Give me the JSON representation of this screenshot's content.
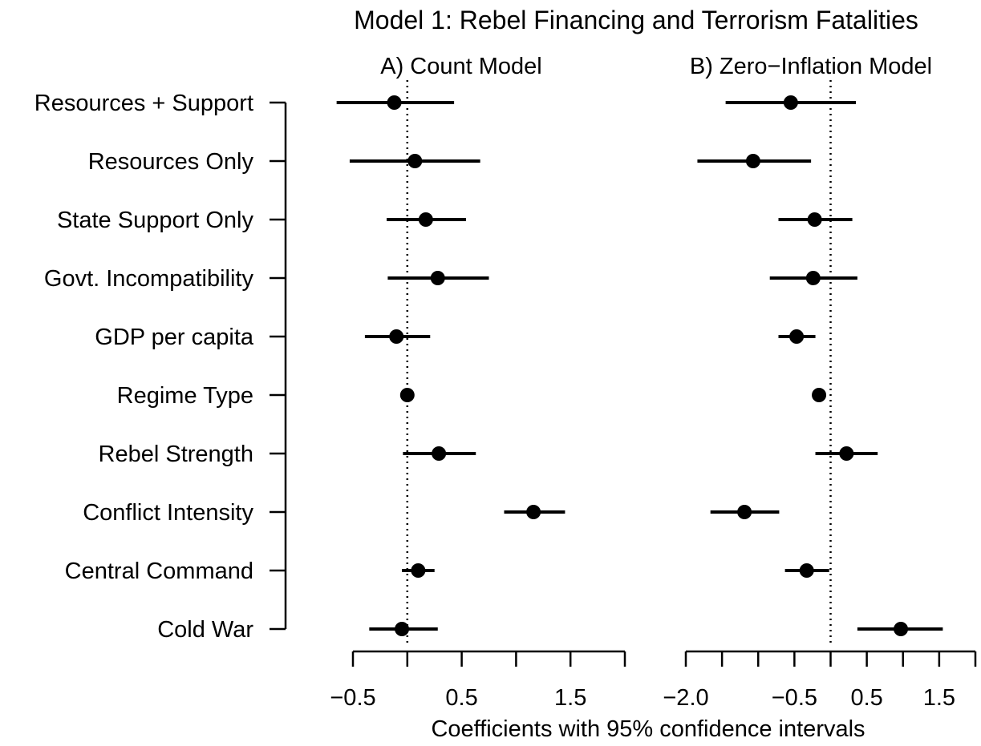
{
  "chart_data": {
    "title": "Model 1: Rebel Financing and Terrorism Fatalities",
    "xlabel": "Coefficients with 95% confidence intervals",
    "categories": [
      "Resources + Support",
      "Resources Only",
      "State Support Only",
      "Govt. Incompatibility",
      "GDP per capita",
      "Regime Type",
      "Rebel Strength",
      "Conflict Intensity",
      "Central Command",
      "Cold War"
    ],
    "panels": [
      {
        "type": "scatter",
        "title": "A) Count Model",
        "xlim": [
          -0.5,
          2.0
        ],
        "ticks": [
          -0.5,
          0.0,
          0.5,
          1.0,
          1.5,
          2.0
        ],
        "tick_labels": [
          "−0.5",
          "",
          "0.5",
          "",
          "1.5",
          ""
        ],
        "reference_line": 0,
        "estimates": [
          -0.12,
          0.07,
          0.17,
          0.28,
          -0.1,
          0.0,
          0.29,
          1.16,
          0.1,
          -0.05
        ],
        "lower": [
          -0.65,
          -0.53,
          -0.19,
          -0.18,
          -0.39,
          0.0,
          -0.04,
          0.89,
          -0.05,
          -0.35
        ],
        "upper": [
          0.43,
          0.67,
          0.54,
          0.75,
          0.21,
          0.0,
          0.63,
          1.45,
          0.25,
          0.28
        ]
      },
      {
        "type": "scatter",
        "title": "B) Zero−Inflation Model",
        "xlim": [
          -2.0,
          2.0
        ],
        "ticks": [
          -2.0,
          -1.5,
          -1.0,
          -0.5,
          0.0,
          0.5,
          1.0,
          1.5,
          2.0
        ],
        "tick_labels": [
          "−2.0",
          "",
          "",
          "−0.5",
          "",
          "0.5",
          "",
          "1.5",
          ""
        ],
        "reference_line": 0,
        "estimates": [
          -0.55,
          -1.07,
          -0.22,
          -0.24,
          -0.47,
          -0.16,
          0.22,
          -1.19,
          -0.33,
          0.97
        ],
        "lower": [
          -1.45,
          -1.84,
          -0.72,
          -0.84,
          -0.72,
          -0.16,
          -0.21,
          -1.66,
          -0.63,
          0.37
        ],
        "upper": [
          0.35,
          -0.27,
          0.3,
          0.37,
          -0.21,
          -0.16,
          0.65,
          -0.71,
          -0.02,
          1.55
        ]
      }
    ]
  }
}
